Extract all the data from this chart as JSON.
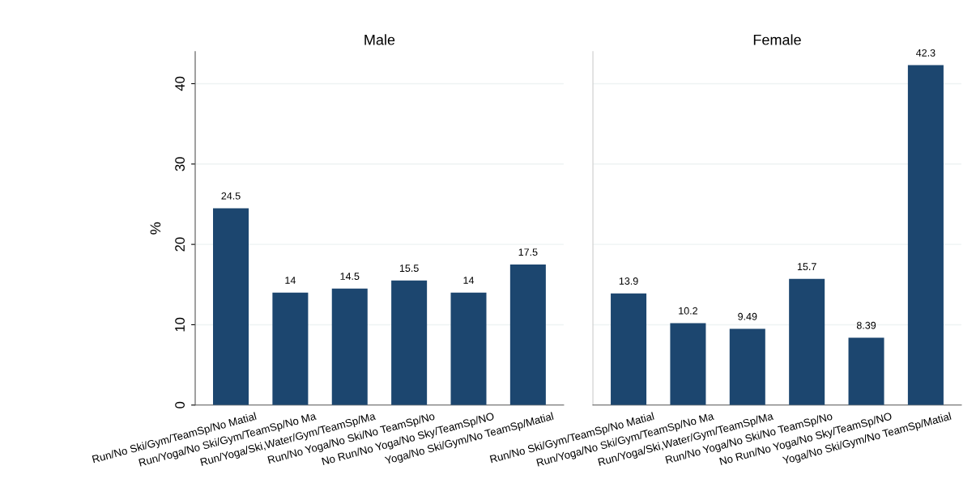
{
  "chart_data": [
    {
      "type": "bar",
      "title": "Male",
      "ylabel": "%",
      "categories": [
        "Run/No Ski/Gym/TeamSp/No Matial",
        "Run/Yoga/No Ski/Gym/TeamSp/No Ma",
        "Run/Yoga/Ski,Water/Gym/TeamSp/Ma",
        "Run/No Yoga/No Ski/No TeamSp/No",
        "No Run/No Yoga/No Sky/TeamSp/NO",
        "Yoga/No Ski/Gym/No TeamSp/Matial"
      ],
      "values": [
        24.5,
        14,
        14.5,
        15.5,
        14,
        17.5
      ],
      "color": "#1c466f",
      "ylim": [
        0,
        44
      ],
      "yticks": [
        0,
        10,
        20,
        30,
        40
      ],
      "grid": "y",
      "data_labels": true
    },
    {
      "type": "bar",
      "title": "Female",
      "categories": [
        "Run/No Ski/Gym/TeamSp/No Matial",
        "Run/Yoga/No Ski/Gym/TeamSp/No Ma",
        "Run/Yoga/Ski,Water/Gym/TeamSp/Ma",
        "Run/No Yoga/No Ski/No TeamSp/No",
        "No Run/No Yoga/No Sky/TeamSp/NO",
        "Yoga/No Ski/Gym/No TeamSp/Matial"
      ],
      "values": [
        13.9,
        10.2,
        9.49,
        15.7,
        8.39,
        42.3
      ],
      "color": "#1c466f",
      "ylim": [
        0,
        44
      ],
      "yticks": [
        0,
        10,
        20,
        30,
        40
      ],
      "grid": "y",
      "data_labels": true,
      "tick_labels": "x"
    }
  ]
}
